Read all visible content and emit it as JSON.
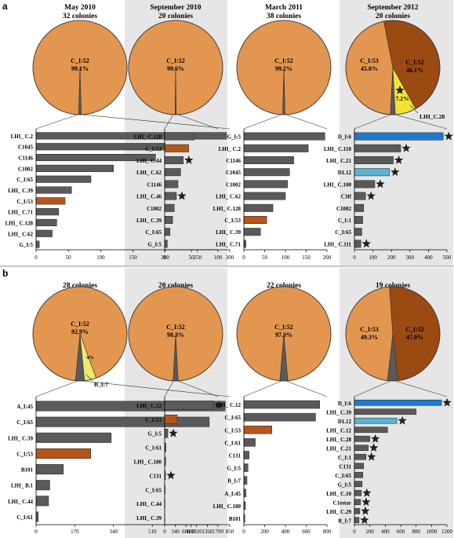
{
  "figure": {
    "label_a": "a",
    "label_b": "b"
  },
  "colors": {
    "orange": "#E3964F",
    "brown": "#9B4A11",
    "yellow": "#F2E233",
    "lightyellow": "#EDEB6E",
    "gray": "#5A5A5A",
    "orange_bar": "#B5551A",
    "blue": "#1F7ACC",
    "lightblue": "#5BB3CF",
    "shade": "#E6E6E6"
  },
  "chart_data": [
    {
      "type": "bar",
      "row": "a",
      "col": 0,
      "title": "May 2010",
      "subtitle": "32 colonies",
      "pie": [
        {
          "name": "C_I:52",
          "label": "C_I:52",
          "pct_label": "99.1%",
          "value": 99.1,
          "color": "orange"
        },
        {
          "name": "other",
          "value": 0.9,
          "color": "gray"
        }
      ],
      "categories": [
        "LHI_ C.2",
        "C1045",
        "C1146",
        "C1002",
        "C_I:65",
        "LHI_ C.39",
        "C_I:53",
        "LHI_ C.71",
        "LHI_ C.128",
        "LHI_ C.62",
        "G_I:5"
      ],
      "values": [
        295,
        200,
        185,
        120,
        85,
        55,
        45,
        35,
        32,
        25,
        5
      ],
      "bar_colors": [
        "gray",
        "gray",
        "gray",
        "gray",
        "gray",
        "gray",
        "orange_bar",
        "gray",
        "gray",
        "gray",
        "gray"
      ],
      "stars": [],
      "ticks": [
        "0",
        "50",
        "100",
        "150",
        "200",
        "250",
        "300"
      ],
      "xlim": [
        0,
        300
      ]
    },
    {
      "type": "bar",
      "row": "a",
      "col": 1,
      "title": "September 2010",
      "subtitle": "20 colonies",
      "pie": [
        {
          "name": "C_I:52",
          "label": "C_I:52",
          "pct_label": "99.6%",
          "value": 99.6,
          "color": "orange"
        },
        {
          "name": "other",
          "value": 0.4,
          "color": "gray"
        }
      ],
      "categories": [
        "LHI_ C.128",
        "C_I:53",
        "LHI_ C.44",
        "LHI_ C.62",
        "C1146",
        "LHI_ C.46",
        "C1002",
        "LHI_ C.39",
        "C_I:65",
        "G_I:5"
      ],
      "values": [
        55,
        45,
        35,
        30,
        25,
        22,
        18,
        15,
        10,
        5
      ],
      "bar_colors": [
        "gray",
        "orange_bar",
        "gray",
        "gray",
        "gray",
        "gray",
        "gray",
        "gray",
        "gray",
        "gray"
      ],
      "stars": [
        2,
        5
      ],
      "ticks": [
        "0",
        "50",
        "100"
      ],
      "xlim": [
        0,
        100
      ]
    },
    {
      "type": "bar",
      "row": "a",
      "col": 2,
      "title": "March 2011",
      "subtitle": "38 colonies",
      "pie": [
        {
          "name": "C_I:52",
          "label": "C_I:52",
          "pct_label": "99.2%",
          "value": 99.2,
          "color": "orange"
        },
        {
          "name": "other",
          "value": 0.8,
          "color": "gray"
        }
      ],
      "categories": [
        "G_I:5",
        "LHI_ C.2",
        "C1146",
        "C1045",
        "C1002",
        "LHI_ C.62",
        "LHI_ C.128",
        "C_I:53",
        "LHI_ C.39",
        "LHI_ C.71"
      ],
      "values": [
        195,
        155,
        120,
        110,
        105,
        100,
        70,
        55,
        40,
        5
      ],
      "bar_colors": [
        "gray",
        "gray",
        "gray",
        "gray",
        "gray",
        "gray",
        "gray",
        "orange_bar",
        "gray",
        "gray"
      ],
      "stars": [],
      "ticks": [
        "0",
        "50",
        "100",
        "150",
        "200"
      ],
      "xlim": [
        0,
        200
      ]
    },
    {
      "type": "bar",
      "row": "a",
      "col": 3,
      "title": "September 2012",
      "subtitle": "20 colonies",
      "pie": [
        {
          "name": "C_I:52",
          "label": "C_I:52",
          "pct_label": "46.1%",
          "value": 46.1,
          "color": "orange"
        },
        {
          "name": "C_I:53",
          "label": "C_I:53",
          "pct_label": "45.0%",
          "value": 45.0,
          "color": "brown"
        },
        {
          "name": "other",
          "value": 1.7,
          "color": "gray"
        },
        {
          "name": "LHI_C.28",
          "label": "LHI_C.28",
          "pct_label": "7.2%",
          "value": 7.2,
          "color": "yellow"
        }
      ],
      "categories": [
        "D_I:6",
        "LHI_ C.110",
        "LHI_ C.21",
        "D1.12",
        "LHI_ C.100",
        "C3ff",
        "C1002",
        "C_I:1",
        "C_I:65",
        "LHI_ C.111"
      ],
      "values": [
        480,
        250,
        210,
        190,
        110,
        60,
        50,
        45,
        40,
        35
      ],
      "bar_colors": [
        "blue",
        "gray",
        "gray",
        "lightblue",
        "gray",
        "gray",
        "gray",
        "gray",
        "gray",
        "gray"
      ],
      "stars": [
        0,
        1,
        2,
        3,
        4,
        5,
        9
      ],
      "ticks": [
        "0",
        "100",
        "200",
        "300",
        "400",
        "500"
      ],
      "xlim": [
        0,
        500
      ]
    },
    {
      "type": "bar",
      "row": "b",
      "col": 0,
      "title": "",
      "subtitle": "28 colonies",
      "pie": [
        {
          "name": "C_I:52",
          "label": "C_I:52",
          "pct_label": "92.9%",
          "value": 92.9,
          "color": "orange"
        },
        {
          "name": "other",
          "value": 3.1,
          "color": "gray"
        },
        {
          "name": "B_I:7",
          "label": "B_I:7",
          "pct_label": "4%",
          "value": 4.0,
          "color": "lightyellow"
        }
      ],
      "categories": [
        "A_I:45",
        "C_I:65",
        "LHI_ C.39",
        "C_I:53",
        "B101",
        "LHI_ B.1",
        "LHI_ C.44",
        "C_I:61"
      ],
      "values": [
        830,
        760,
        330,
        240,
        120,
        60,
        55,
        10
      ],
      "bar_colors": [
        "gray",
        "gray",
        "gray",
        "orange_bar",
        "gray",
        "gray",
        "gray",
        "gray"
      ],
      "stars": [],
      "ticks": [
        "0",
        "170",
        "340",
        "510",
        "680",
        "850"
      ],
      "xlim": [
        0,
        850
      ]
    },
    {
      "type": "bar",
      "row": "b",
      "col": 1,
      "title": "",
      "subtitle": "20 colonies",
      "pie": [
        {
          "name": "C_I:52",
          "label": "C_I:52",
          "pct_label": "98.3%",
          "value": 98.3,
          "color": "orange"
        },
        {
          "name": "other",
          "value": 1.7,
          "color": "gray"
        }
      ],
      "categories": [
        "LHI_ C.12",
        "C_I:53",
        "G_I:5",
        "C_I:61",
        "LHI_ C.180",
        "C131",
        "C_I:65",
        "LHI_ C.44",
        "LHI_ C.39"
      ],
      "values": [
        1560,
        400,
        100,
        40,
        30,
        25,
        15,
        10,
        5
      ],
      "bar_colors": [
        "gray",
        "orange_bar",
        "gray",
        "gray",
        "gray",
        "gray",
        "gray",
        "gray",
        "gray"
      ],
      "stars": [
        0,
        2,
        5
      ],
      "ticks": [
        "0",
        "340",
        "680",
        "1020",
        "1360",
        "1700"
      ],
      "xlim": [
        0,
        1700
      ]
    },
    {
      "type": "bar",
      "row": "b",
      "col": 2,
      "title": "",
      "subtitle": "22 colonies",
      "pie": [
        {
          "name": "C_I:52",
          "label": "C_I:52",
          "pct_label": "97.3%",
          "value": 97.3,
          "color": "orange"
        },
        {
          "name": "other",
          "value": 2.7,
          "color": "gray"
        }
      ],
      "categories": [
        "LHI_ C.12",
        "C_I:65",
        "C_I:53",
        "C_I:61",
        "C131",
        "G_I:5",
        "B_I:7",
        "A_I:45",
        "LHI_ C.180",
        "B101"
      ],
      "values": [
        730,
        690,
        270,
        110,
        50,
        40,
        30,
        20,
        15,
        10
      ],
      "bar_colors": [
        "gray",
        "gray",
        "orange_bar",
        "gray",
        "gray",
        "gray",
        "gray",
        "gray",
        "gray",
        "gray"
      ],
      "stars": [],
      "ticks": [
        "0",
        "200",
        "400",
        "600",
        "800"
      ],
      "xlim": [
        0,
        800
      ]
    },
    {
      "type": "bar",
      "row": "b",
      "col": 3,
      "title": "",
      "subtitle": "19 colonies",
      "pie": [
        {
          "name": "C_I:52",
          "label": "C_I:52",
          "pct_label": "47.0%",
          "value": 47.0,
          "color": "orange"
        },
        {
          "name": "C_I:53",
          "label": "C_I:53",
          "pct_label": "49.3%",
          "value": 49.3,
          "color": "brown"
        },
        {
          "name": "other",
          "value": 3.7,
          "color": "gray"
        }
      ],
      "categories": [
        "D_I:6",
        "LHI_ C.39",
        "D1.12",
        "LHI_ C.12",
        "LHI_ C.28",
        "LHI_ C.21",
        "C_I:1",
        "C131",
        "C_I:65",
        "G_I:5",
        "LHI_ C.10",
        "C1estar",
        "LHI_ C.29",
        "B_I:7"
      ],
      "values": [
        1130,
        800,
        550,
        430,
        200,
        180,
        150,
        120,
        110,
        100,
        90,
        80,
        70,
        60
      ],
      "bar_colors": [
        "blue",
        "gray",
        "lightblue",
        "gray",
        "gray",
        "gray",
        "gray",
        "gray",
        "gray",
        "gray",
        "gray",
        "gray",
        "gray",
        "gray"
      ],
      "stars": [
        0,
        2,
        4,
        5,
        6,
        10,
        11,
        12,
        13
      ],
      "ticks": [
        "0",
        "200",
        "400",
        "600",
        "800",
        "1000",
        "1200"
      ],
      "xlim": [
        0,
        1200
      ]
    }
  ]
}
